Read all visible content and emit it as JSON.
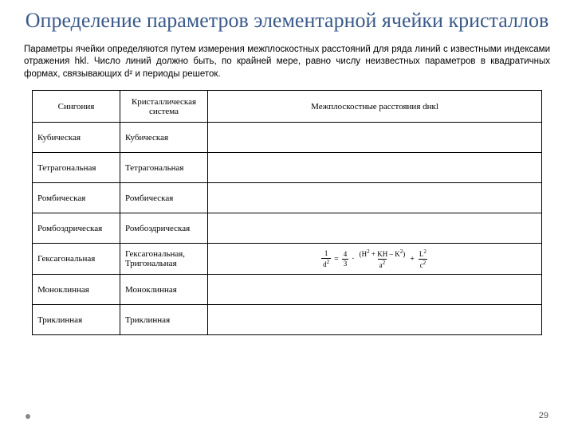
{
  "title": "Определение параметров элементарной ячейки кристаллов",
  "paragraph": "Параметры ячейки определяются путем измерения межплоскостных расстояний для ряда линий с известными индексами отражения hkl. Число линий должно быть, по крайней мере, равно числу неизвестных параметров в квадратичных формах, связывающих d² и периоды решеток.",
  "table": {
    "columns": [
      "Сингония",
      "Кристаллическая система",
      "Межплоскостные расстояния dнкl"
    ],
    "rows": [
      {
        "a": "Кубическая",
        "b": "Кубическая",
        "formula": ""
      },
      {
        "a": "Тетрагональная",
        "b": "Тетрагональная",
        "formula": ""
      },
      {
        "a": "Ромбическая",
        "b": "Ромбическая",
        "formula": ""
      },
      {
        "a": "Ромбоэдрическая",
        "b": "Ромбоэдрическая",
        "formula": ""
      },
      {
        "a": "Гексагональная",
        "b": "Гексагональная, Тригональная",
        "formula": "hex"
      },
      {
        "a": "Моноклинная",
        "b": "Моноклинная",
        "formula": ""
      },
      {
        "a": "Триклинная",
        "b": "Триклинная",
        "formula": ""
      }
    ]
  },
  "page_number": "29",
  "styling": {
    "title_color": "#3a5a8a",
    "title_fontsize": 26,
    "body_fontsize": 11.5,
    "table_fontsize": 11,
    "border_color": "#000000",
    "background": "#ffffff"
  }
}
